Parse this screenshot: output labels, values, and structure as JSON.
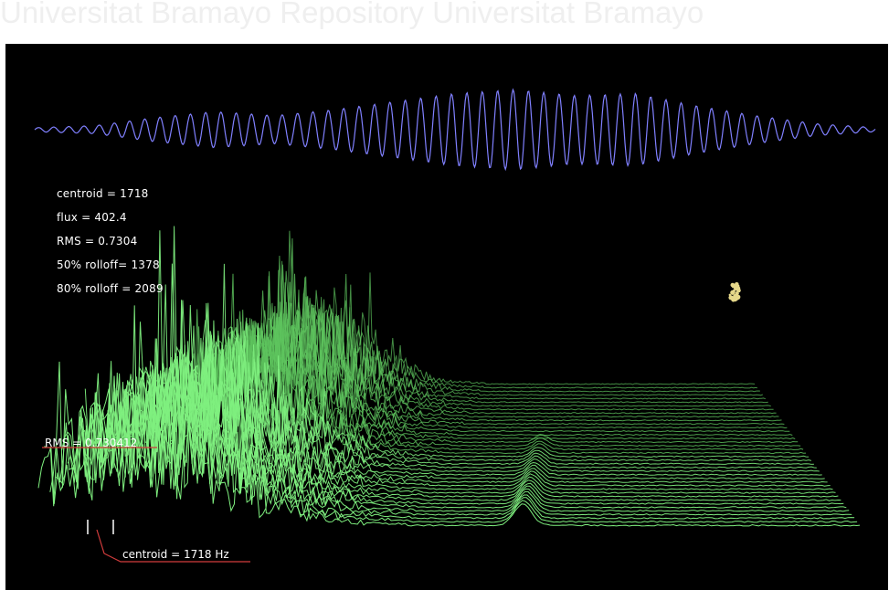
{
  "watermark": {
    "text": "Universitat Bramayo    Repository Universitat Bramayo"
  },
  "features": {
    "centroid": {
      "label": "centroid",
      "separator": "=",
      "value": "1718"
    },
    "flux": {
      "label": "flux",
      "separator": "=",
      "value": "402.4"
    },
    "rms": {
      "label": "RMS",
      "separator": "=",
      "value": "0.7304"
    },
    "rolloff50": {
      "label": "50% rolloff=",
      "value": "1378"
    },
    "rolloff80": {
      "label": "80% rolloff",
      "separator": "=",
      "value": "2089"
    }
  },
  "markers": {
    "rms": {
      "label": "RMS",
      "separator": "=",
      "value": "0.730412"
    },
    "centroid": {
      "label": "centroid",
      "separator": "=",
      "value": "1718",
      "unit": "Hz"
    }
  },
  "colors": {
    "background": "#000000",
    "waveform": "#8080ff",
    "spectrum": "#5ec45e",
    "spectrum_bright": "#7ff07f",
    "marker_line": "#d23c3c",
    "point": "#e6d88a",
    "text": "#ffffff"
  },
  "chart_data": {
    "type": "line",
    "waveform": {
      "amplitude_envelope": [
        0.05,
        0.1,
        0.3,
        0.45,
        0.35,
        0.5,
        0.7,
        0.9,
        1.0,
        0.85,
        0.9,
        0.6,
        0.35,
        0.15,
        0.05
      ],
      "cycles": 55
    },
    "spectrogram": {
      "frames": 40,
      "peak_frequency_index": 0.12,
      "perspective": "waterfall"
    }
  }
}
